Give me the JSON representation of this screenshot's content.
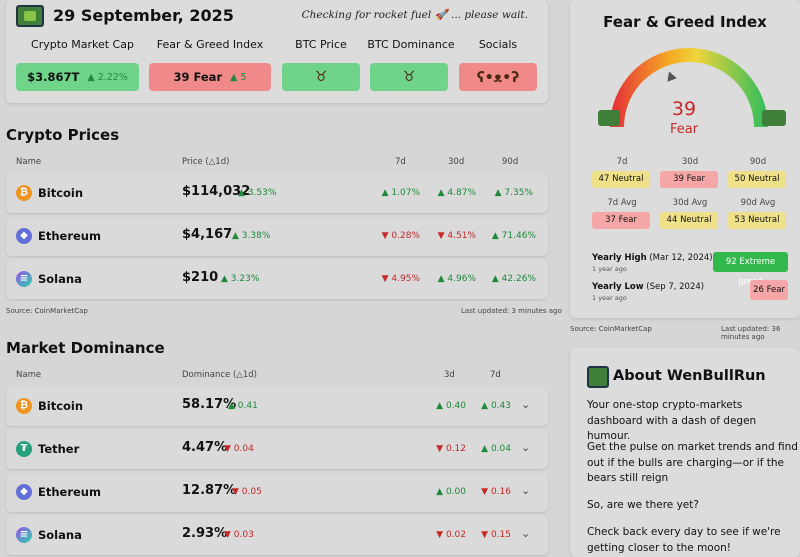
{
  "header": {
    "date": "29 September, 2025",
    "status": "Checking for rocket fuel",
    "status_emoji": "🚀",
    "status_tail": "... please wait.",
    "stats": [
      {
        "label": "Crypto Market Cap",
        "value": "$3.867T",
        "change": "2.22%",
        "dir": "up"
      },
      {
        "label": "Fear & Greed Index",
        "value": "39 Fear",
        "change": "5",
        "dir": "up"
      },
      {
        "label": "BTC Price"
      },
      {
        "label": "BTC Dominance"
      },
      {
        "label": "Socials"
      }
    ]
  },
  "prices": {
    "title": "Crypto Prices",
    "headers": {
      "name": "Name",
      "price": "Price (△1d)",
      "d7": "7d",
      "d30": "30d",
      "d90": "90d"
    },
    "rows": [
      {
        "name": "Bitcoin",
        "price": "$114,032",
        "d1": "3.53%",
        "d7": "1.07%",
        "d30": "4.87%",
        "d90": "7.35%"
      },
      {
        "name": "Ethereum",
        "price": "$4,167",
        "d1": "3.38%",
        "d7": "0.28%",
        "d30": "4.51%",
        "d90": "71.46%"
      },
      {
        "name": "Solana",
        "price": "$210",
        "d1": "3.23%",
        "d7": "4.95%",
        "d30": "4.96%",
        "d90": "42.26%"
      }
    ],
    "source": "Source: CoinMarketCap",
    "updated": "Last updated: 3 minutes ago"
  },
  "dominance": {
    "title": "Market Dominance",
    "headers": {
      "name": "Name",
      "dom": "Dominance (△1d)",
      "d3": "3d",
      "d7": "7d"
    },
    "rows": [
      {
        "name": "Bitcoin",
        "dom": "58.17%",
        "d1": "0.41",
        "d3": "0.40",
        "d7": "0.43"
      },
      {
        "name": "Tether",
        "dom": "4.47%",
        "d1": "0.04",
        "d3": "0.12",
        "d7": "0.04"
      },
      {
        "name": "Ethereum",
        "dom": "12.87%",
        "d1": "0.05",
        "d3": "0.00",
        "d7": "0.16"
      },
      {
        "name": "Solana",
        "dom": "2.93%",
        "d1": "0.03",
        "d3": "0.02",
        "d7": "0.15"
      }
    ]
  },
  "fear_greed": {
    "title": "Fear & Greed Index",
    "value": "39",
    "value_fraction": 0.39,
    "label": "Fear",
    "periods": {
      "d7": "7d",
      "d30": "30d",
      "d90": "90d",
      "a7": "7d Avg",
      "a30": "30d Avg",
      "a90": "90d Avg"
    },
    "d7": "47 Neutral",
    "d30": "39 Fear",
    "d90": "50 Neutral",
    "a7": "37 Fear",
    "a30": "44 Neutral",
    "a90": "53 Neutral",
    "yearly_high_label": "Yearly High",
    "yearly_high_date": "(Mar 12, 2024)",
    "yearly_high_ago": "1 year ago",
    "yearly_high_val": "92 Extreme greed",
    "yearly_low_label": "Yearly Low",
    "yearly_low_date": "(Sep 7, 2024)",
    "yearly_low_ago": "1 year ago",
    "yearly_low_val": "26 Fear",
    "source": "Source: CoinMarketCap",
    "updated": "Last updated: 36 minutes ago"
  },
  "about": {
    "title": "About WenBullRun",
    "p1": "Your one-stop crypto-markets dashboard with a dash of degen humour.",
    "p2": "Get the pulse on market trends and find out if the bulls are charging—or if the bears still reign",
    "p3": "So, are we there yet?",
    "p4": "Check back every day to see if we're getting closer to the moon!"
  },
  "colors": {
    "up": "#1e8a3a",
    "down": "#c62828",
    "green": "#6fd38a",
    "red": "#f08a8a"
  },
  "icons": {
    "bitcoin": "bitcoin-icon",
    "ethereum": "ethereum-icon",
    "solana": "solana-icon",
    "tether": "tether-icon",
    "chevron": "chevron-down-icon",
    "bull": "bull-icon",
    "bear": "bear-icon"
  }
}
